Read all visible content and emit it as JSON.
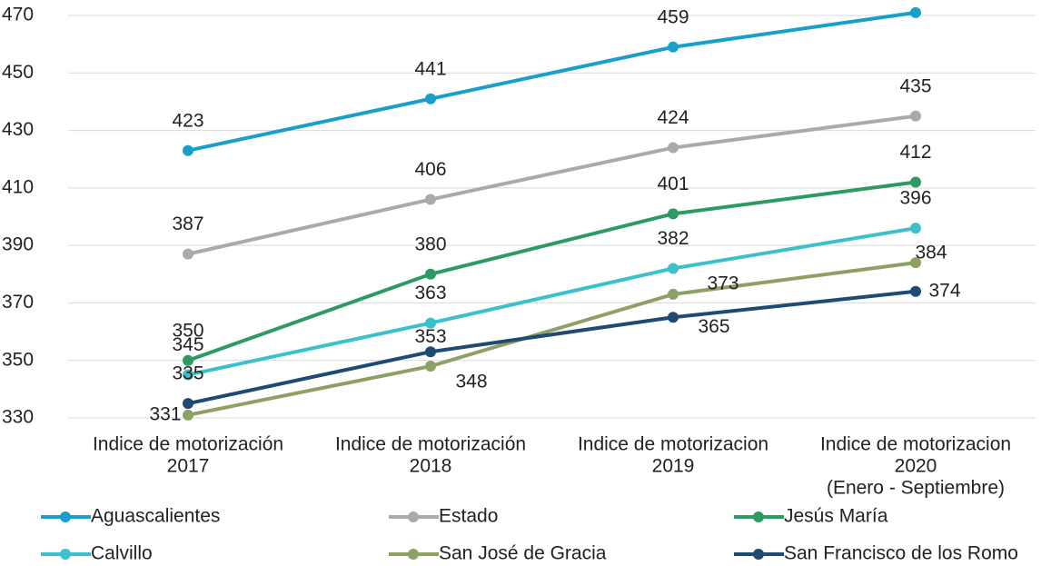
{
  "chart_data": {
    "type": "line",
    "categories": [
      [
        "Indice de motorización",
        "2017"
      ],
      [
        "Indice de motorización",
        "2018"
      ],
      [
        "Indice de motorizacion",
        "2019"
      ],
      [
        "Indice de motorizacion",
        "2020",
        "(Enero - Septiembre)"
      ]
    ],
    "series": [
      {
        "name": "Aguascalientes",
        "color": "#1a9fc9",
        "values": [
          423,
          441,
          459,
          471
        ]
      },
      {
        "name": "Estado",
        "color": "#aaaaaa",
        "values": [
          387,
          406,
          424,
          435
        ]
      },
      {
        "name": "Jesús María",
        "color": "#2e9a63",
        "values": [
          350,
          380,
          401,
          412
        ]
      },
      {
        "name": "Calvillo",
        "color": "#3cc0c9",
        "values": [
          345,
          363,
          382,
          396
        ]
      },
      {
        "name": "San José de Gracia",
        "color": "#8fa066",
        "values": [
          331,
          348,
          373,
          384
        ]
      },
      {
        "name": "San Francisco de los Romo",
        "color": "#1f4a72",
        "values": [
          335,
          353,
          365,
          374
        ]
      }
    ],
    "ylim": [
      330,
      470
    ],
    "yticks": [
      330,
      350,
      370,
      390,
      410,
      430,
      450,
      470
    ],
    "grid": true
  }
}
